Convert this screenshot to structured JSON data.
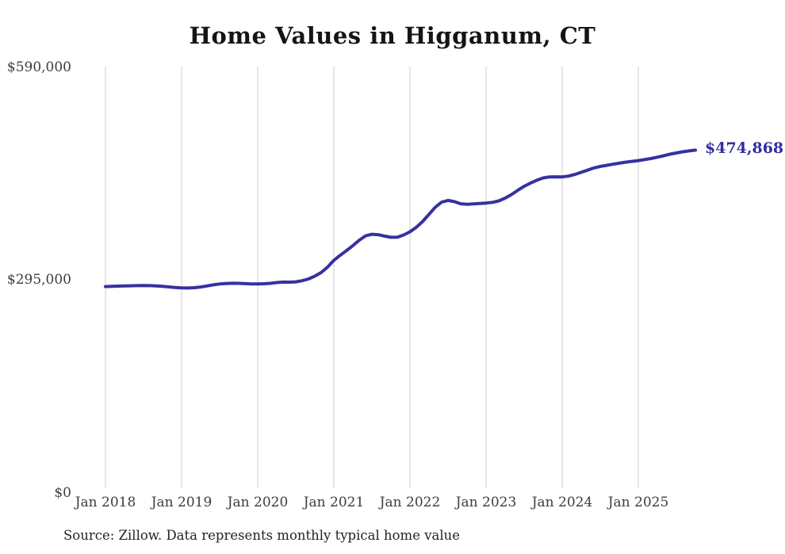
{
  "title": "Home Values in Higganum, CT",
  "source": "Source: Zillow. Data represents monthly typical home value",
  "chart_data": {
    "type": "line",
    "title": "Home Values in Higganum, CT",
    "series_name": "Monthly typical home value",
    "x_start": "Jan 2018",
    "x_end": "Oct 2025",
    "months_per_point": 1,
    "x_tick_labels": [
      "Jan 2018",
      "Jan 2019",
      "Jan 2020",
      "Jan 2021",
      "Jan 2022",
      "Jan 2023",
      "Jan 2024",
      "Jan 2025"
    ],
    "x_tick_interval_months": 12,
    "y_ticks": [
      0,
      295000,
      590000
    ],
    "y_tick_labels": [
      "$0",
      "$295,000",
      "$590,000"
    ],
    "ylim": [
      0,
      590000
    ],
    "grid": "vertical-only",
    "legend": "none",
    "line_color": "#3631a0",
    "grid_color": "#cccccc",
    "end_label": "$474,868",
    "end_value": 474868,
    "values": [
      285000,
      285300,
      285600,
      285900,
      286100,
      286300,
      286400,
      286300,
      285900,
      285300,
      284500,
      283700,
      283100,
      283000,
      283400,
      284400,
      285900,
      287400,
      288600,
      289300,
      289600,
      289500,
      289100,
      288700,
      288600,
      288900,
      289500,
      290600,
      291300,
      291100,
      291600,
      293100,
      295600,
      299500,
      304500,
      312000,
      321500,
      328500,
      335000,
      342000,
      349500,
      355500,
      357800,
      357200,
      355200,
      353600,
      353700,
      356800,
      361200,
      367500,
      375500,
      385500,
      395500,
      402500,
      404800,
      403200,
      400200,
      399500,
      400100,
      400700,
      401200,
      402200,
      404200,
      408000,
      413000,
      419000,
      424500,
      429000,
      433000,
      436200,
      437600,
      437700,
      437600,
      438700,
      441000,
      444000,
      447000,
      450000,
      452200,
      453700,
      455200,
      456700,
      458100,
      459200,
      460300,
      461700,
      463200,
      465000,
      467000,
      469200,
      470900,
      472500,
      473800,
      474868
    ]
  }
}
